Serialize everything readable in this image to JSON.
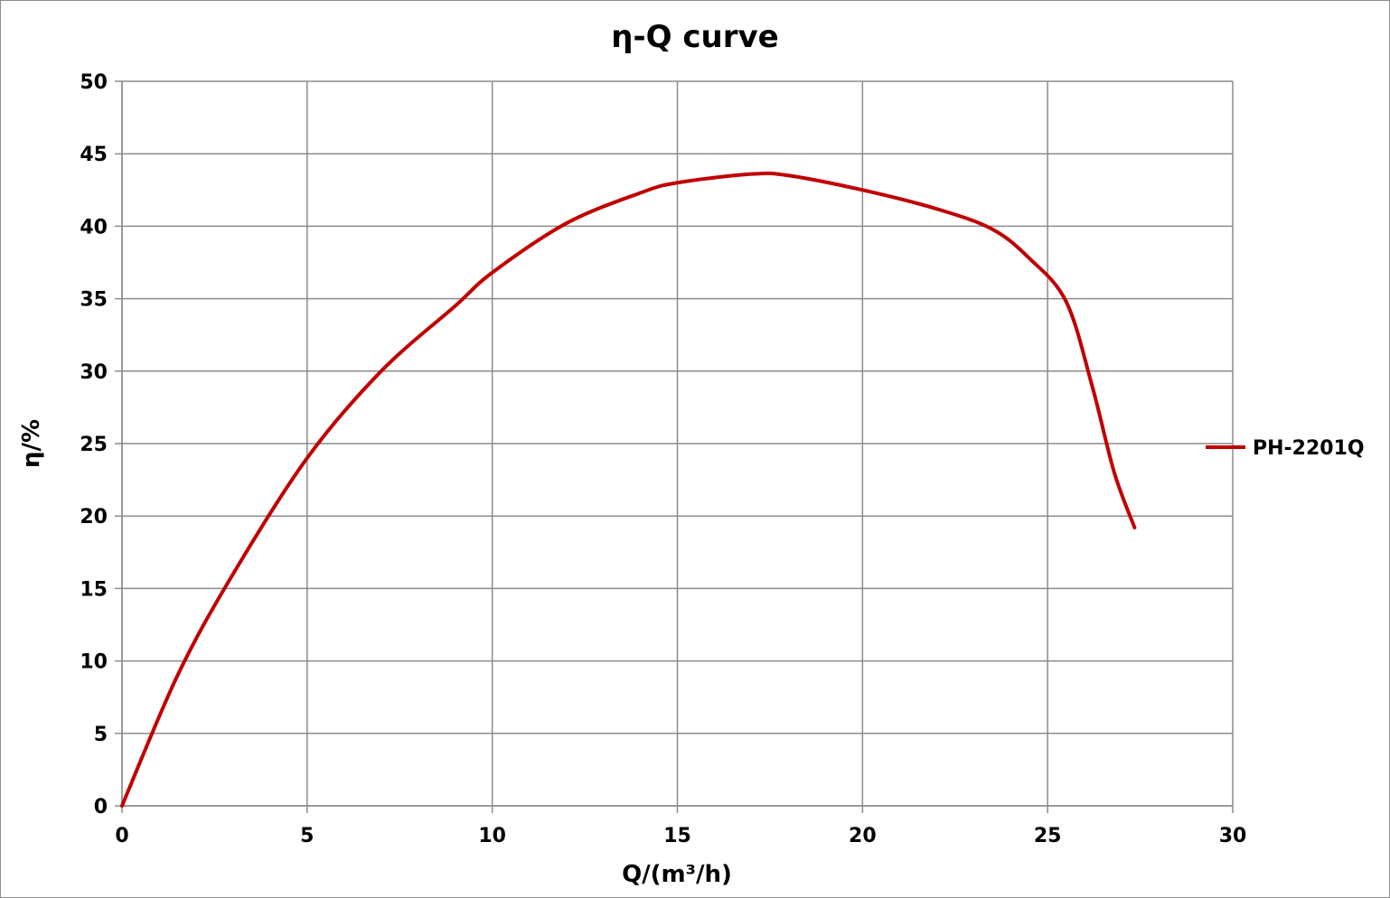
{
  "chart_data": {
    "type": "line",
    "title": "η-Q  curve",
    "xlabel": "Q/(m³/h)",
    "ylabel": "η/%",
    "xlim": [
      0,
      30
    ],
    "ylim": [
      0,
      50
    ],
    "xticks": [
      0,
      5,
      10,
      15,
      20,
      25,
      30
    ],
    "yticks": [
      0,
      5,
      10,
      15,
      20,
      25,
      30,
      35,
      40,
      45,
      50
    ],
    "grid": true,
    "legend_position": "right",
    "series": [
      {
        "name": "PH-2201Q",
        "color": "#c00000",
        "x": [
          0,
          1.5,
          3,
          5,
          7,
          9,
          10,
          12,
          14,
          15,
          17,
          18,
          20,
          22,
          23.5,
          24.5,
          25.5,
          26.2,
          26.8,
          27.35
        ],
        "y": [
          0,
          9,
          16,
          24,
          30,
          34.5,
          36.8,
          40.2,
          42.3,
          43,
          43.6,
          43.5,
          42.5,
          41.2,
          39.8,
          37.8,
          34.8,
          29,
          23,
          19.2
        ]
      }
    ]
  }
}
